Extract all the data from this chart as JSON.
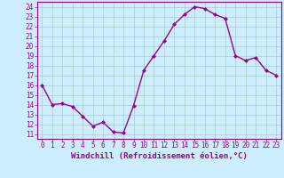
{
  "x": [
    0,
    1,
    2,
    3,
    4,
    5,
    6,
    7,
    8,
    9,
    10,
    11,
    12,
    13,
    14,
    15,
    16,
    17,
    18,
    19,
    20,
    21,
    22,
    23
  ],
  "y": [
    16,
    14,
    14.1,
    13.8,
    12.8,
    11.8,
    12.2,
    11.2,
    11.1,
    13.9,
    17.5,
    19.0,
    20.5,
    22.2,
    23.2,
    24.0,
    23.8,
    23.2,
    22.8,
    19.0,
    18.5,
    18.8,
    17.5,
    17.0
  ],
  "line_color": "#990099",
  "marker": "D",
  "marker_size": 2.0,
  "bg_color": "#cceeff",
  "grid_color": "#aacccc",
  "xlabel": "Windchill (Refroidissement éolien,°C)",
  "xlim": [
    -0.5,
    23.5
  ],
  "ylim": [
    10.5,
    24.5
  ],
  "yticks": [
    11,
    12,
    13,
    14,
    15,
    16,
    17,
    18,
    19,
    20,
    21,
    22,
    23,
    24
  ],
  "xticks": [
    0,
    1,
    2,
    3,
    4,
    5,
    6,
    7,
    8,
    9,
    10,
    11,
    12,
    13,
    14,
    15,
    16,
    17,
    18,
    19,
    20,
    21,
    22,
    23
  ],
  "xlabel_fontsize": 6.5,
  "tick_fontsize": 5.5,
  "linewidth": 1.0
}
